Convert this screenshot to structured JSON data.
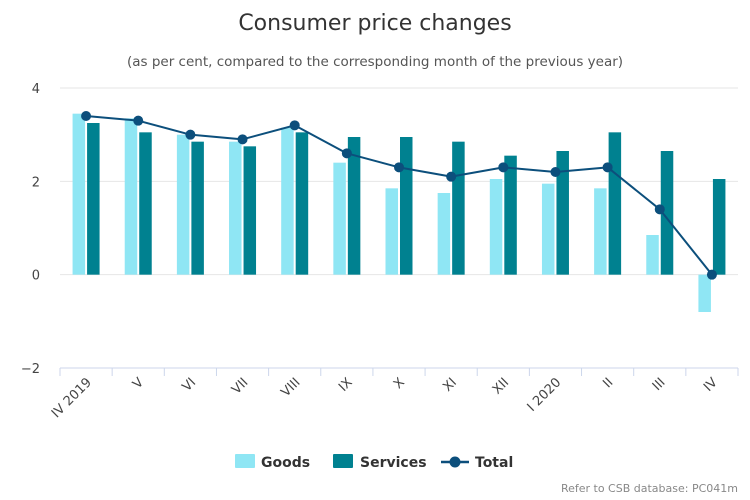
{
  "chart_data": {
    "type": "bar",
    "title": "Consumer price changes",
    "subtitle": "(as per cent, compared to the corresponding month of the previous year)",
    "categories": [
      "IV 2019",
      "V",
      "VI",
      "VII",
      "VIII",
      "IX",
      "X",
      "XI",
      "XII",
      "I 2020",
      "II",
      "III",
      "IV"
    ],
    "series": [
      {
        "name": "Goods",
        "kind": "bar",
        "color": "#8fe6f4",
        "values": [
          3.45,
          3.35,
          3.0,
          2.85,
          3.15,
          2.4,
          1.85,
          1.75,
          2.05,
          1.95,
          1.85,
          0.85,
          -0.8
        ]
      },
      {
        "name": "Services",
        "kind": "bar",
        "color": "#008190",
        "values": [
          3.25,
          3.05,
          2.85,
          2.75,
          3.05,
          2.95,
          2.95,
          2.85,
          2.55,
          2.65,
          3.05,
          2.65,
          2.05
        ]
      },
      {
        "name": "Total",
        "kind": "line",
        "color": "#0c4f7c",
        "values": [
          3.4,
          3.3,
          3.0,
          2.9,
          3.2,
          2.6,
          2.3,
          2.1,
          2.3,
          2.2,
          2.3,
          1.4,
          0.0
        ]
      }
    ],
    "yticks": [
      "4",
      "2",
      "0",
      "−2"
    ],
    "ytick_values": [
      4,
      2,
      0,
      -2
    ],
    "ylim": [
      -2,
      4
    ],
    "grid": "horizontal",
    "legend_position": "bottom-center",
    "credit": "Refer to CSB database: PC041m"
  }
}
